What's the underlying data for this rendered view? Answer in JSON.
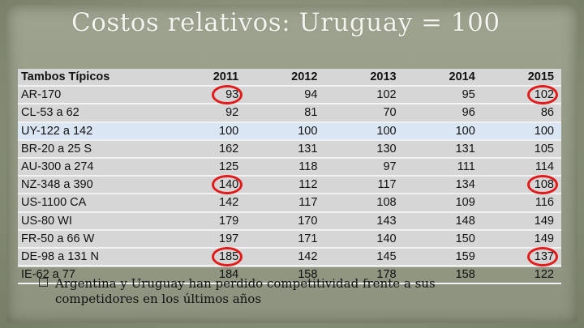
{
  "slide": {
    "title": "Costos relativos: Uruguay = 100",
    "bullet": "Argentina y Uruguay han perdido competitividad frente a sus competidores en los últimos años",
    "bullet_icon": "square-bullet-icon",
    "highlight_color": "#dbe6f4",
    "circle_color": "#e21a1a"
  },
  "table": {
    "headers": [
      "Tambos Típicos",
      "2011",
      "2012",
      "2013",
      "2014",
      "2015"
    ],
    "rows": [
      [
        "AR-170",
        "93",
        "94",
        "102",
        "95",
        "102"
      ],
      [
        "CL-53 a 62",
        "92",
        "81",
        "70",
        "96",
        "86"
      ],
      [
        "UY-122 a 142",
        "100",
        "100",
        "100",
        "100",
        "100"
      ],
      [
        "BR-20 a 25 S",
        "162",
        "131",
        "130",
        "131",
        "105"
      ],
      [
        "AU-300 a 274",
        "125",
        "118",
        "97",
        "111",
        "114"
      ],
      [
        "NZ-348 a 390",
        "140",
        "112",
        "117",
        "134",
        "108"
      ],
      [
        "US-1100 CA",
        "142",
        "117",
        "108",
        "109",
        "116"
      ],
      [
        "US-80 WI",
        "179",
        "170",
        "143",
        "148",
        "149"
      ],
      [
        "FR-50 a 66 W",
        "197",
        "171",
        "140",
        "150",
        "149"
      ],
      [
        "DE-98 a 131 N",
        "185",
        "142",
        "145",
        "159",
        "137"
      ],
      [
        "IE-62 a 77",
        "184",
        "158",
        "178",
        "158",
        "122"
      ]
    ],
    "highlighted_row": 2,
    "circled_cells": [
      [
        0,
        1
      ],
      [
        0,
        5
      ],
      [
        5,
        1
      ],
      [
        5,
        5
      ],
      [
        9,
        1
      ],
      [
        9,
        5
      ]
    ]
  }
}
